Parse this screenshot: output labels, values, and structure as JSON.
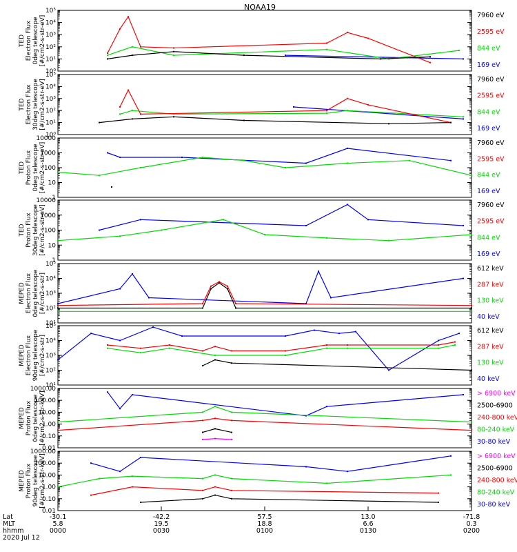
{
  "figure": {
    "title": "NOAA19",
    "date_label": "2020 Jul 12"
  },
  "colors": {
    "black": "#000000",
    "red": "#ff0000",
    "green": "#00dd00",
    "blue": "#0000ff",
    "magenta": "#ff00ff"
  },
  "chart_data": [
    {
      "type": "line",
      "ylabel": [
        "TED",
        "Electron Flux",
        "0deg telescope",
        "[#/cm2-s-str-eV]"
      ],
      "yscale": "log",
      "ylim": [
        1,
        100000
      ],
      "ytick_labels": [
        "10⁰",
        "10¹",
        "10²",
        "10³",
        "10⁴",
        "10⁵"
      ],
      "series": [
        {
          "name": "7960 eV",
          "color": "black",
          "values": [
            [
              12,
              10
            ],
            [
              18,
              20
            ],
            [
              28,
              40
            ],
            [
              45,
              20
            ],
            [
              78,
              10
            ],
            [
              90,
              15
            ]
          ]
        },
        {
          "name": "2595 eV",
          "color": "red",
          "values": [
            [
              12,
              30
            ],
            [
              15,
              3000
            ],
            [
              17,
              30000
            ],
            [
              20,
              100
            ],
            [
              28,
              80
            ],
            [
              65,
              200
            ],
            [
              70,
              1500
            ],
            [
              75,
              500
            ],
            [
              90,
              5
            ]
          ]
        },
        {
          "name": "844 eV",
          "color": "green",
          "values": [
            [
              12,
              20
            ],
            [
              18,
              100
            ],
            [
              28,
              20
            ],
            [
              65,
              60
            ],
            [
              80,
              10
            ],
            [
              97,
              50
            ]
          ]
        },
        {
          "name": "169 eV",
          "color": "blue",
          "values": [
            [
              55,
              20
            ],
            [
              98,
              10
            ]
          ]
        }
      ]
    },
    {
      "type": "line",
      "ylabel": [
        "TED",
        "Electron Flux",
        "30deg telescope",
        "[#/cm2-s-str-eV]"
      ],
      "yscale": "log",
      "ylim": [
        1,
        100000
      ],
      "ytick_labels": [
        "10⁰",
        "10¹",
        "10²",
        "10³",
        "10⁴",
        "10⁵"
      ],
      "series": [
        {
          "name": "7960 eV",
          "color": "black",
          "values": [
            [
              10,
              10
            ],
            [
              18,
              20
            ],
            [
              28,
              30
            ],
            [
              45,
              15
            ],
            [
              80,
              8
            ],
            [
              95,
              10
            ]
          ]
        },
        {
          "name": "2595 eV",
          "color": "red",
          "values": [
            [
              15,
              200
            ],
            [
              17,
              5000
            ],
            [
              20,
              50
            ],
            [
              65,
              100
            ],
            [
              70,
              1000
            ],
            [
              75,
              300
            ],
            [
              95,
              10
            ]
          ]
        },
        {
          "name": "844 eV",
          "color": "green",
          "values": [
            [
              15,
              50
            ],
            [
              18,
              100
            ],
            [
              28,
              50
            ],
            [
              65,
              60
            ],
            [
              70,
              100
            ],
            [
              98,
              30
            ]
          ]
        },
        {
          "name": "169 eV",
          "color": "blue",
          "values": [
            [
              57,
              200
            ],
            [
              98,
              20
            ]
          ]
        }
      ]
    },
    {
      "type": "line",
      "ylabel": [
        "TED",
        "Proton Flux",
        "0deg telescope",
        "[#/cm2-s-str-eV]"
      ],
      "yscale": "log",
      "ylim": [
        1,
        10000
      ],
      "ytick_labels": [
        "1",
        "10",
        "100",
        "1000",
        "10000"
      ],
      "series": [
        {
          "name": "7960 eV",
          "color": "black",
          "values": [
            [
              13,
              5
            ]
          ]
        },
        {
          "name": "2595 eV",
          "color": "red",
          "values": []
        },
        {
          "name": "844 eV",
          "color": "green",
          "values": [
            [
              0,
              50
            ],
            [
              10,
              30
            ],
            [
              20,
              100
            ],
            [
              35,
              500
            ],
            [
              45,
              300
            ],
            [
              55,
              100
            ],
            [
              70,
              200
            ],
            [
              85,
              300
            ],
            [
              100,
              30
            ]
          ]
        },
        {
          "name": "169 eV",
          "color": "blue",
          "values": [
            [
              12,
              1000
            ],
            [
              15,
              500
            ],
            [
              30,
              500
            ],
            [
              60,
              200
            ],
            [
              70,
              2000
            ],
            [
              95,
              300
            ]
          ]
        }
      ]
    },
    {
      "type": "line",
      "ylabel": [
        "TED",
        "Proton Flux",
        "30deg telescope",
        "[#/cm2-s-str-eV]"
      ],
      "yscale": "log",
      "ylim": [
        1,
        10000
      ],
      "ytick_labels": [
        "1",
        "10",
        "100",
        "1000",
        "10000"
      ],
      "series": [
        {
          "name": "7960 eV",
          "color": "black",
          "values": []
        },
        {
          "name": "2595 eV",
          "color": "red",
          "values": []
        },
        {
          "name": "844 eV",
          "color": "green",
          "values": [
            [
              0,
              20
            ],
            [
              15,
              40
            ],
            [
              25,
              100
            ],
            [
              40,
              500
            ],
            [
              50,
              50
            ],
            [
              65,
              30
            ],
            [
              80,
              20
            ],
            [
              100,
              50
            ]
          ]
        },
        {
          "name": "169 eV",
          "color": "blue",
          "values": [
            [
              10,
              100
            ],
            [
              20,
              500
            ],
            [
              60,
              200
            ],
            [
              70,
              5000
            ],
            [
              75,
              500
            ],
            [
              98,
              200
            ]
          ]
        }
      ]
    },
    {
      "type": "line",
      "ylabel": [
        "MEPED",
        "Electron Flux",
        "0deg telescope",
        "[#/cm2-s-str]"
      ],
      "yscale": "log",
      "ylim": [
        10,
        100000
      ],
      "ytick_labels": [
        "10¹",
        "10²",
        "10³",
        "10⁴",
        "10⁵"
      ],
      "series": [
        {
          "name": "612 keV",
          "color": "black",
          "values": [
            [
              0,
              100
            ],
            [
              35,
              100
            ],
            [
              37,
              2000
            ],
            [
              39,
              5000
            ],
            [
              41,
              2000
            ],
            [
              43,
              100
            ],
            [
              100,
              100
            ]
          ]
        },
        {
          "name": "287 keV",
          "color": "red",
          "values": [
            [
              0,
              150
            ],
            [
              35,
              200
            ],
            [
              37,
              3000
            ],
            [
              39,
              6000
            ],
            [
              41,
              3000
            ],
            [
              43,
              200
            ],
            [
              100,
              150
            ]
          ]
        },
        {
          "name": "130 keV",
          "color": "green",
          "values": [
            [
              0,
              60
            ],
            [
              100,
              60
            ]
          ]
        },
        {
          "name": "40 keV",
          "color": "blue",
          "values": [
            [
              0,
              200
            ],
            [
              15,
              2000
            ],
            [
              18,
              20000
            ],
            [
              22,
              500
            ],
            [
              60,
              200
            ],
            [
              63,
              30000
            ],
            [
              66,
              500
            ],
            [
              98,
              10000
            ]
          ]
        }
      ]
    },
    {
      "type": "line",
      "ylabel": [
        "MEPED",
        "Electron Flux",
        "90deg telescope",
        "[#/cm2-s-str]"
      ],
      "yscale": "log",
      "ylim": [
        10,
        100000
      ],
      "ytick_labels": [
        "10¹",
        "10²",
        "10³",
        "10⁴",
        "10⁵"
      ],
      "series": [
        {
          "name": "612 keV",
          "color": "black",
          "values": [
            [
              35,
              200
            ],
            [
              38,
              500
            ],
            [
              42,
              300
            ],
            [
              100,
              100
            ]
          ]
        },
        {
          "name": "287 keV",
          "color": "red",
          "values": [
            [
              12,
              5000
            ],
            [
              20,
              3000
            ],
            [
              27,
              5000
            ],
            [
              35,
              2000
            ],
            [
              38,
              4000
            ],
            [
              42,
              2000
            ],
            [
              55,
              2000
            ],
            [
              65,
              5000
            ],
            [
              70,
              5000
            ],
            [
              92,
              5000
            ],
            [
              96,
              8000
            ]
          ]
        },
        {
          "name": "130 keV",
          "color": "green",
          "values": [
            [
              12,
              3000
            ],
            [
              20,
              1500
            ],
            [
              27,
              3000
            ],
            [
              38,
              1000
            ],
            [
              55,
              1000
            ],
            [
              65,
              3000
            ],
            [
              70,
              3000
            ],
            [
              92,
              3000
            ],
            [
              96,
              5000
            ]
          ]
        },
        {
          "name": "40 keV",
          "color": "blue",
          "values": [
            [
              0,
              500
            ],
            [
              8,
              30000
            ],
            [
              15,
              10000
            ],
            [
              23,
              80000
            ],
            [
              30,
              20000
            ],
            [
              55,
              20000
            ],
            [
              62,
              50000
            ],
            [
              68,
              30000
            ],
            [
              72,
              40000
            ],
            [
              80,
              100
            ],
            [
              92,
              10000
            ],
            [
              97,
              30000
            ]
          ]
        }
      ]
    },
    {
      "type": "line",
      "ylabel": [
        "MEPED",
        "Proton Flux",
        "0deg telescope",
        "[#/cm2-s-str-keV]"
      ],
      "yscale": "log",
      "ylim": [
        0.01,
        1000
      ],
      "ytick_labels": [
        "0.01",
        "0.10",
        "1.00",
        "10.00",
        "100.00",
        "1000.00"
      ],
      "series": [
        {
          "name": "> 6900 keV",
          "color": "magenta",
          "values": [
            [
              35,
              0.05
            ],
            [
              38,
              0.06
            ],
            [
              42,
              0.05
            ]
          ]
        },
        {
          "name": "2500-6900",
          "color": "black",
          "values": [
            [
              35,
              0.2
            ],
            [
              38,
              0.4
            ],
            [
              42,
              0.2
            ]
          ]
        },
        {
          "name": "240-800 keV",
          "color": "red",
          "values": [
            [
              0,
              0.3
            ],
            [
              35,
              2
            ],
            [
              38,
              3
            ],
            [
              42,
              2
            ],
            [
              100,
              0.3
            ]
          ]
        },
        {
          "name": "80-240 keV",
          "color": "green",
          "values": [
            [
              0,
              1.5
            ],
            [
              35,
              10
            ],
            [
              38,
              30
            ],
            [
              42,
              10
            ],
            [
              100,
              1.5
            ]
          ]
        },
        {
          "name": "30-80 keV",
          "color": "blue",
          "values": [
            [
              12,
              500
            ],
            [
              15,
              20
            ],
            [
              18,
              300
            ],
            [
              60,
              5
            ],
            [
              65,
              30
            ],
            [
              98,
              300
            ]
          ]
        }
      ]
    },
    {
      "type": "line",
      "ylabel": [
        "MEPED",
        "Proton Flux",
        "90deg telescope",
        "[#/cm2-s-str-keV]"
      ],
      "yscale": "log",
      "ylim": [
        0.01,
        1000
      ],
      "ytick_labels": [
        "0.01",
        "0.10",
        "1.00",
        "10.00",
        "100.00",
        "1000.00"
      ],
      "series": [
        {
          "name": "> 6900 keV",
          "color": "magenta",
          "values": []
        },
        {
          "name": "2500-6900",
          "color": "black",
          "values": [
            [
              20,
              0.05
            ],
            [
              35,
              0.1
            ],
            [
              38,
              0.2
            ],
            [
              42,
              0.1
            ],
            [
              92,
              0.05
            ]
          ]
        },
        {
          "name": "240-800 keV",
          "color": "red",
          "values": [
            [
              8,
              0.2
            ],
            [
              18,
              1
            ],
            [
              35,
              0.5
            ],
            [
              38,
              1
            ],
            [
              42,
              0.5
            ],
            [
              92,
              0.3
            ]
          ]
        },
        {
          "name": "80-240 keV",
          "color": "green",
          "values": [
            [
              0,
              1
            ],
            [
              10,
              5
            ],
            [
              18,
              8
            ],
            [
              35,
              5
            ],
            [
              38,
              10
            ],
            [
              42,
              5
            ],
            [
              65,
              2
            ],
            [
              95,
              10
            ]
          ]
        },
        {
          "name": "30-80 keV",
          "color": "blue",
          "values": [
            [
              8,
              100
            ],
            [
              15,
              20
            ],
            [
              20,
              300
            ],
            [
              60,
              50
            ],
            [
              70,
              20
            ],
            [
              95,
              400
            ]
          ]
        }
      ]
    }
  ],
  "x_axis": {
    "row_labels": [
      "Lat",
      "MLT",
      "hhmm"
    ],
    "ticks": [
      {
        "frac": 0.0,
        "lat": "-30.1",
        "mlt": "5.8",
        "hhmm": "0000"
      },
      {
        "frac": 0.25,
        "lat": "-42.2",
        "mlt": "19.5",
        "hhmm": "0030"
      },
      {
        "frac": 0.5,
        "lat": "57.5",
        "mlt": "18.8",
        "hhmm": "0100"
      },
      {
        "frac": 0.75,
        "lat": "13.0",
        "mlt": "6.6",
        "hhmm": "0130"
      },
      {
        "frac": 1.0,
        "lat": "-71.8",
        "mlt": "0.3",
        "hhmm": "0200"
      }
    ]
  }
}
